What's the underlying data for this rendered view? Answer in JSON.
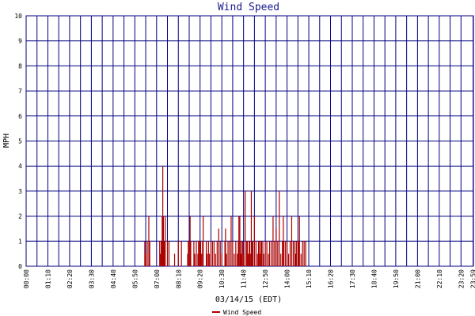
{
  "chart_data": {
    "type": "bar",
    "title": "Wind Speed",
    "xlabel": "03/14/15 (EDT)",
    "ylabel": "MPH",
    "ylim": [
      0,
      10
    ],
    "yticks": [
      0,
      1,
      2,
      3,
      4,
      5,
      6,
      7,
      8,
      9,
      10
    ],
    "xlim": [
      0,
      1440
    ],
    "xtick_labels": [
      "00:00",
      "01:10",
      "02:20",
      "03:30",
      "04:40",
      "05:50",
      "07:00",
      "08:10",
      "09:20",
      "10:30",
      "11:40",
      "12:50",
      "14:00",
      "15:10",
      "16:20",
      "17:30",
      "18:40",
      "19:50",
      "21:00",
      "22:10",
      "23:20",
      "23:59"
    ],
    "xtick_minutes": [
      0,
      70,
      140,
      210,
      280,
      350,
      420,
      490,
      560,
      630,
      700,
      770,
      840,
      910,
      980,
      1050,
      1120,
      1190,
      1260,
      1330,
      1400,
      1439
    ],
    "grid": true,
    "legend": {
      "position": "bottom-center"
    },
    "series": [
      {
        "name": "Wind Speed",
        "color": "#aa0000",
        "x": [
          382,
          385,
          390,
          395,
          398,
          430,
          432,
          435,
          437,
          438,
          440,
          442,
          445,
          448,
          455,
          460,
          478,
          490,
          500,
          520,
          522,
          525,
          528,
          530,
          540,
          543,
          548,
          553,
          555,
          558,
          560,
          562,
          565,
          568,
          570,
          580,
          583,
          587,
          590,
          595,
          600,
          605,
          610,
          615,
          620,
          625,
          630,
          640,
          642,
          645,
          650,
          655,
          660,
          665,
          670,
          675,
          680,
          683,
          685,
          688,
          690,
          692,
          695,
          698,
          700,
          705,
          710,
          712,
          715,
          718,
          720,
          722,
          725,
          728,
          730,
          735,
          740,
          745,
          748,
          750,
          753,
          755,
          758,
          762,
          765,
          770,
          775,
          780,
          784,
          790,
          795,
          800,
          805,
          810,
          815,
          820,
          825,
          828,
          830,
          835,
          840,
          845,
          850,
          855,
          860,
          865,
          868,
          870,
          875,
          878,
          880,
          885,
          890,
          895,
          900
        ],
        "values": [
          1,
          0.5,
          1,
          2,
          1,
          1,
          0.5,
          1,
          1,
          2,
          4,
          2,
          1,
          2,
          1,
          1,
          0.5,
          1,
          1,
          0.5,
          1,
          1,
          2,
          1,
          1,
          0.5,
          1,
          0.5,
          1,
          1,
          1,
          1,
          0.5,
          1,
          2,
          1,
          0.5,
          1,
          0.5,
          1,
          1,
          1,
          0.5,
          1,
          1.5,
          1,
          0.5,
          1,
          1.5,
          0.5,
          1,
          1,
          2,
          1,
          0.5,
          1,
          0.5,
          1,
          2,
          2,
          1,
          0.5,
          1,
          1,
          0.5,
          3,
          1,
          1,
          0.5,
          1,
          1,
          0.5,
          3,
          1,
          1,
          2,
          1,
          0.5,
          1,
          1,
          0.5,
          1,
          1,
          1,
          0.5,
          1,
          1,
          0.5,
          1,
          1,
          2,
          1,
          1.5,
          1,
          3,
          0.5,
          1,
          2,
          1,
          1,
          1,
          0.5,
          1,
          2,
          1,
          1,
          0.5,
          1,
          1,
          1,
          2,
          0.5,
          1,
          1,
          1
        ]
      }
    ]
  }
}
